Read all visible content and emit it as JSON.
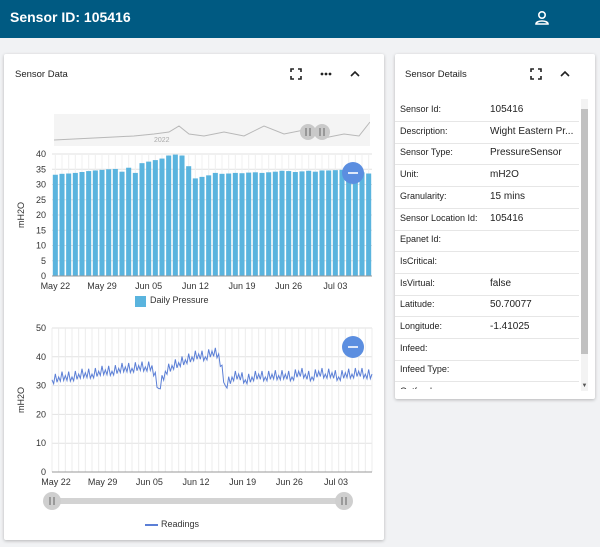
{
  "header": {
    "title": "Sensor ID: 105416",
    "user_icon": "user-icon"
  },
  "sensor_data_card": {
    "title": "Sensor Data",
    "toolbar": [
      "fullscreen-icon",
      "more-icon",
      "collapse-icon"
    ],
    "navigator_year": "2022"
  },
  "bar_chart": {
    "ylabel": "mH2O",
    "legend": "Daily Pressure",
    "color": "#5ab4de"
  },
  "line_chart": {
    "ylabel": "mH2O",
    "legend": "Readings",
    "color": "#5b7fd6"
  },
  "details_card": {
    "title": "Sensor Details",
    "rows": [
      {
        "label": "Sensor Id:",
        "value": "105416"
      },
      {
        "label": "Description:",
        "value": "Wight Eastern Pr..."
      },
      {
        "label": "Sensor Type:",
        "value": "PressureSensor"
      },
      {
        "label": "Unit:",
        "value": "mH2O"
      },
      {
        "label": "Granularity:",
        "value": "15 mins"
      },
      {
        "label": "Sensor Location Id:",
        "value": "105416"
      },
      {
        "label": "Epanet Id:",
        "value": ""
      },
      {
        "label": "IsCritical:",
        "value": ""
      },
      {
        "label": "IsVirtual:",
        "value": "false"
      },
      {
        "label": "Latitude:",
        "value": "50.70077"
      },
      {
        "label": "Longitude:",
        "value": "-1.41025"
      },
      {
        "label": "Infeed:",
        "value": ""
      },
      {
        "label": "Infeed Type:",
        "value": ""
      },
      {
        "label": "Outfeed:",
        "value": ""
      }
    ]
  },
  "chart_data": [
    {
      "type": "bar",
      "ylabel": "mH2O",
      "ylim": [
        0,
        40
      ],
      "yticks": [
        "0",
        "5",
        "10",
        "15",
        "20",
        "25",
        "30",
        "35",
        "40"
      ],
      "xticks": [
        "May 22",
        "May 29",
        "Jun 05",
        "Jun 12",
        "Jun 19",
        "Jun 26",
        "Jul 03"
      ],
      "series": [
        {
          "name": "Daily Pressure",
          "values": [
            33.2,
            33.5,
            33.6,
            33.8,
            34.1,
            34.4,
            34.6,
            34.8,
            35.0,
            35.1,
            34.2,
            35.5,
            33.8,
            37.0,
            37.5,
            38.0,
            38.5,
            39.5,
            39.8,
            39.5,
            36.0,
            32.0,
            32.5,
            33.0,
            33.8,
            33.5,
            33.6,
            33.8,
            33.7,
            33.9,
            34.0,
            33.8,
            34.0,
            34.2,
            34.5,
            34.4,
            34.1,
            34.3,
            34.5,
            34.2,
            34.6,
            34.6,
            34.7,
            34.8,
            34.4,
            34.5,
            34.0,
            33.6
          ]
        }
      ],
      "grid": true,
      "legend": "bottom"
    },
    {
      "type": "line",
      "ylabel": "mH2O",
      "ylim": [
        0,
        50
      ],
      "yticks": [
        "0",
        "10",
        "20",
        "30",
        "40",
        "50"
      ],
      "xticks": [
        "May 22",
        "May 29",
        "Jun 05",
        "Jun 12",
        "Jun 19",
        "Jun 26",
        "Jul 03"
      ],
      "series": [
        {
          "name": "Readings",
          "x_days": [
            0,
            1,
            2,
            3,
            4,
            5,
            6,
            7,
            8,
            9,
            10,
            11,
            12,
            13,
            14,
            15,
            16,
            17,
            18,
            19,
            20,
            21,
            22,
            23,
            24,
            25,
            26,
            27,
            28,
            29,
            30,
            31,
            32,
            33,
            34,
            35,
            36,
            37,
            38,
            39,
            40,
            41,
            42,
            43,
            44,
            45,
            46,
            47,
            48
          ],
          "values": [
            32,
            33,
            33.5,
            33,
            34,
            34.5,
            34,
            35,
            35.5,
            35,
            36,
            36.5,
            36,
            37,
            36.5,
            37,
            29,
            35,
            37,
            38,
            39,
            40,
            41,
            40,
            42,
            41,
            30,
            33,
            34,
            32,
            33,
            34,
            33,
            34,
            33.5,
            34,
            33,
            35,
            34,
            33,
            35,
            34,
            34.5,
            33,
            34.5,
            34,
            35,
            34,
            34
          ]
        }
      ],
      "grid": true,
      "legend": "bottom"
    }
  ]
}
